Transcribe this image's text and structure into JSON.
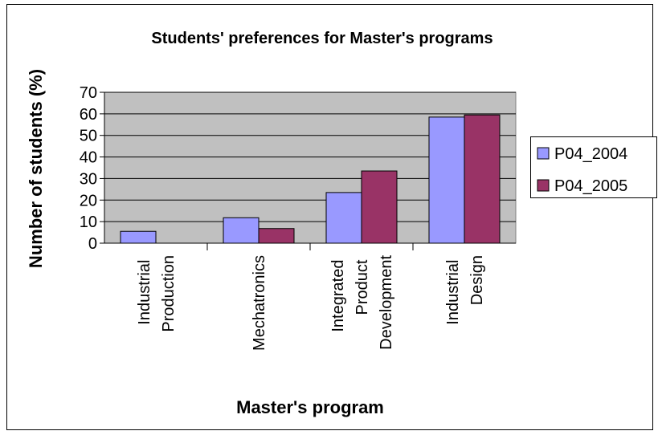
{
  "chart_data": {
    "type": "bar",
    "title": "Students' preferences for Master's programs",
    "x_label": "Master's program",
    "y_label": "Number of students (%)",
    "categories": [
      "Industrial Production",
      "Mechatronics",
      "Integrated Product Development",
      "Industrial Design"
    ],
    "series": [
      {
        "name": "P04_2004",
        "color": "#9999ff",
        "values": [
          5.5,
          11.8,
          23.5,
          58.5
        ]
      },
      {
        "name": "P04_2005",
        "color": "#993366",
        "values": [
          0,
          6.8,
          33.5,
          59.5
        ]
      }
    ],
    "ylim": [
      0,
      70
    ],
    "yticks": [
      0,
      10,
      20,
      30,
      40,
      50,
      60,
      70
    ],
    "grid": true,
    "legend": "right"
  }
}
